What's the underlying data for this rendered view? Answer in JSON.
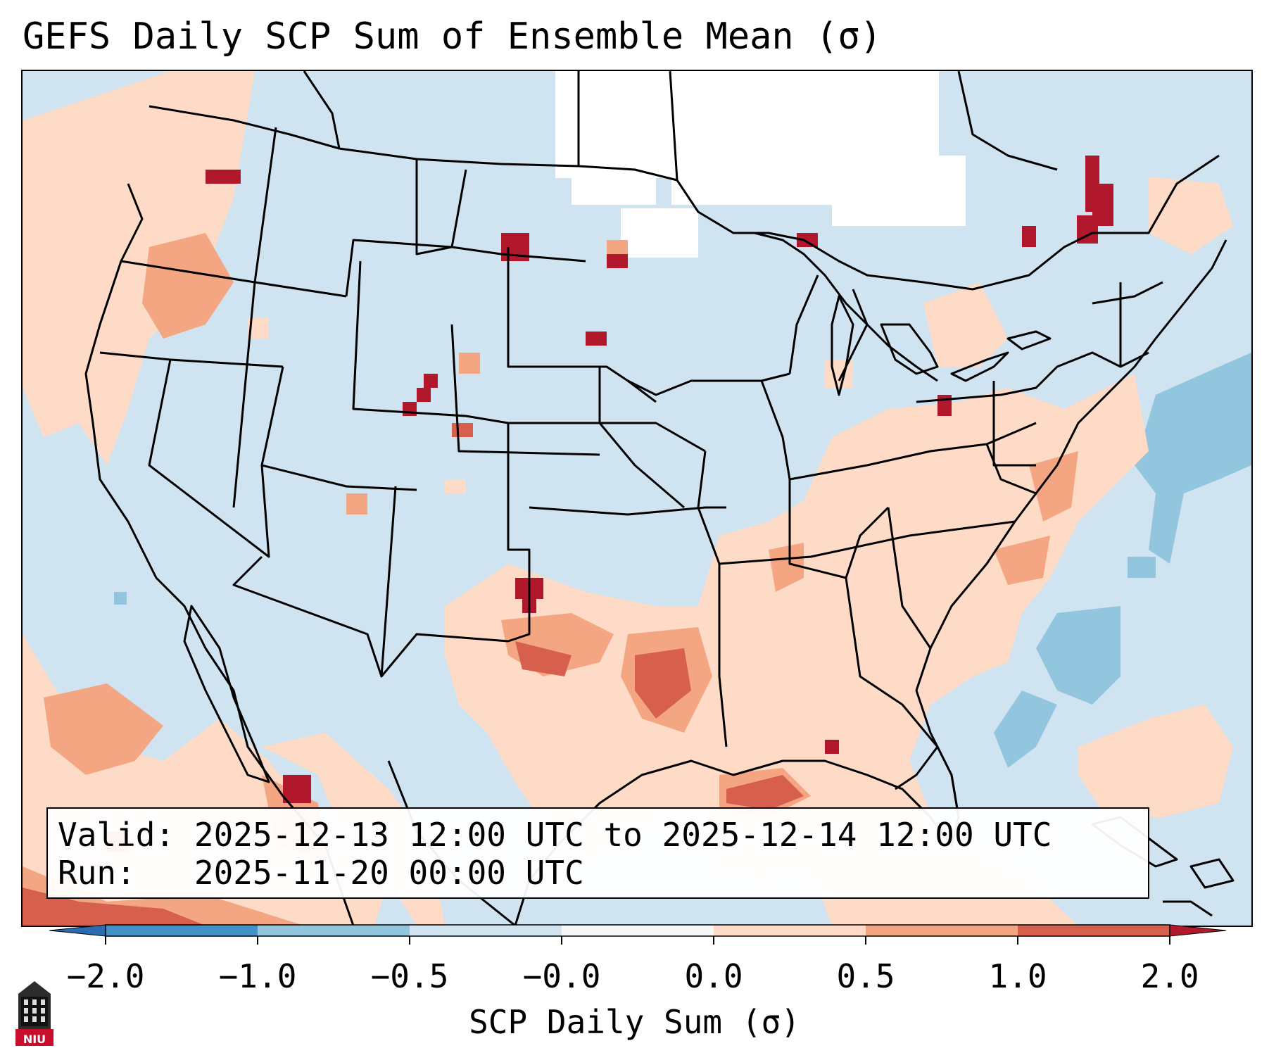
{
  "title": "GEFS Daily SCP Sum of Ensemble Mean (σ)",
  "info": {
    "valid_label": "Valid:",
    "valid_value": "2025-12-13 12:00 UTC to 2025-12-14 12:00 UTC",
    "run_label": "Run:",
    "run_value": "2025-11-20 00:00 UTC"
  },
  "colorbar": {
    "label": "SCP Daily Sum (σ)",
    "ticks": [
      "−2.0",
      "−1.0",
      "−0.5",
      "−0.0",
      "0.0",
      "0.5",
      "1.0",
      "2.0"
    ],
    "bins": [
      {
        "range": "< -2.0",
        "color": "#2b6cb0"
      },
      {
        "range": "-2.0 to -1.0",
        "color": "#4291c7"
      },
      {
        "range": "-1.0 to -0.5",
        "color": "#92c5de"
      },
      {
        "range": "-0.5 to -0.0",
        "color": "#d1e5f0"
      },
      {
        "range": "-0.0 to 0.0",
        "color": "#f7f7f7"
      },
      {
        "range": "0.0 to 0.5",
        "color": "#fddbc7"
      },
      {
        "range": "0.5 to 1.0",
        "color": "#f4a582"
      },
      {
        "range": "1.0 to 2.0",
        "color": "#d6604d"
      },
      {
        "range": "> 2.0",
        "color": "#b2182b"
      }
    ]
  },
  "logo": {
    "text": "NIU"
  },
  "colors": {
    "background_field": "#d1e5f0",
    "light_positive": "#fddbc7",
    "moderate_positive": "#f4a582",
    "strong_positive": "#d6604d",
    "extreme_positive": "#b2182b",
    "light_negative": "#92c5de",
    "neutral": "#ffffff"
  }
}
